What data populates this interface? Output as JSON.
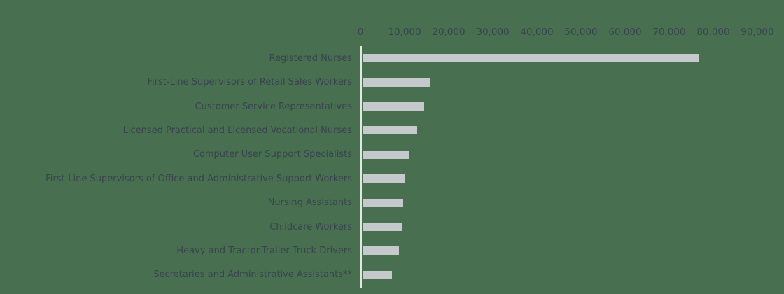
{
  "chart_data": {
    "type": "bar",
    "orientation": "horizontal",
    "title": "",
    "xlabel": "",
    "ylabel": "",
    "axis_position": "top",
    "grid": false,
    "legend": false,
    "xlim": [
      0,
      90000
    ],
    "x_ticks": [
      "0",
      "10,000",
      "20,000",
      "30,000",
      "40,000",
      "50,000",
      "60,000",
      "70,000",
      "80,000",
      "90,000"
    ],
    "categories": [
      "Registered Nurses",
      "First-Line Supervisors of Retail Sales Workers",
      "Customer Service Representatives",
      "Licensed Practical and Licensed Vocational Nurses",
      "Computer User Support Specialists",
      "First-Line Supervisors of Office and Administrative Support Workers",
      "Nursing Assistants",
      "Childcare Workers",
      "Heavy and Tractor-Trailer Truck Drivers",
      "Secretaries and Administrative Assistants**"
    ],
    "values": [
      76400,
      15400,
      14000,
      12400,
      10500,
      9700,
      9200,
      8900,
      8300,
      6700
    ],
    "colors": {
      "background": "#487050",
      "bar_fill": "#c6c9cc",
      "axis_line": "#e2e7e3",
      "text": "#39434f"
    }
  }
}
